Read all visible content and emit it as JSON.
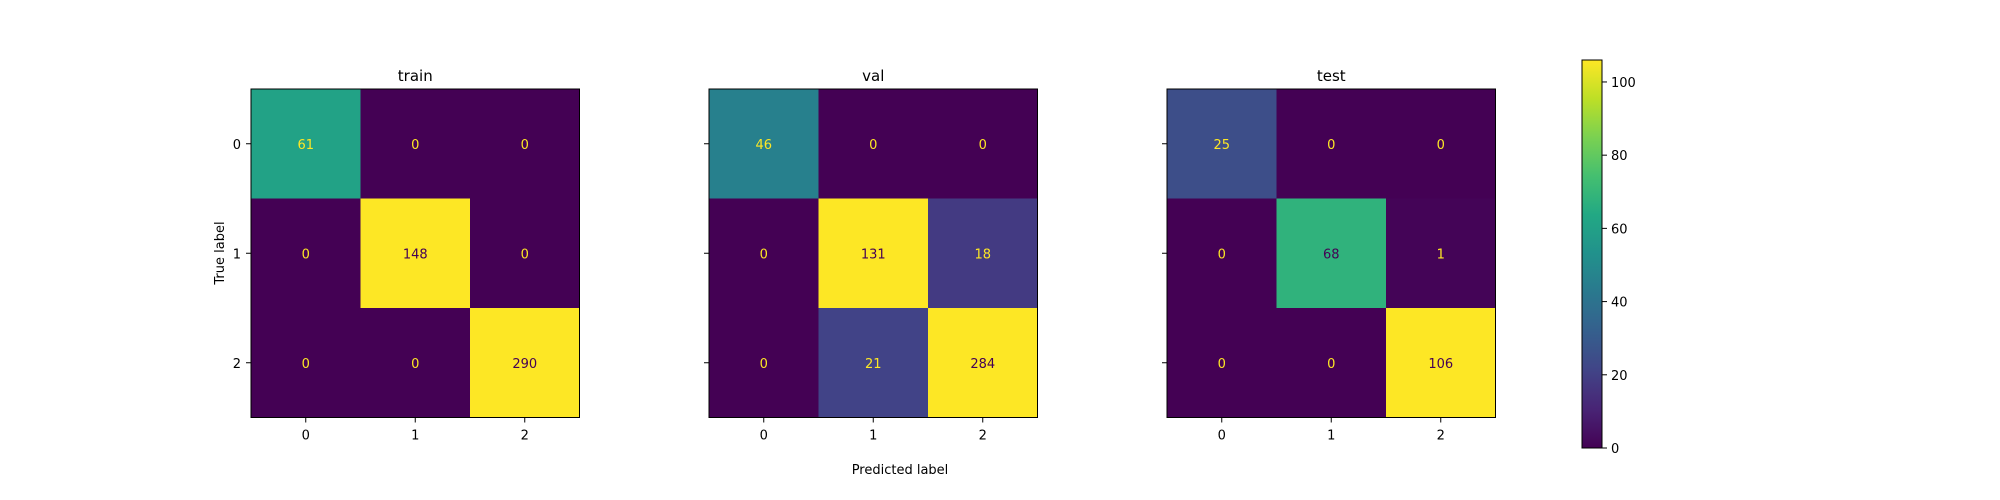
{
  "chart_data": {
    "type": "heatmap",
    "colormap": "viridis",
    "panels": [
      {
        "title": "train",
        "matrix": [
          [
            61,
            0,
            0
          ],
          [
            0,
            148,
            0
          ],
          [
            0,
            0,
            290
          ]
        ]
      },
      {
        "title": "val",
        "matrix": [
          [
            46,
            0,
            0
          ],
          [
            0,
            131,
            18
          ],
          [
            0,
            21,
            284
          ]
        ]
      },
      {
        "title": "test",
        "matrix": [
          [
            25,
            0,
            0
          ],
          [
            0,
            68,
            1
          ],
          [
            0,
            0,
            106
          ]
        ]
      }
    ],
    "x_tick_labels": [
      "0",
      "1",
      "2"
    ],
    "y_tick_labels": [
      "0",
      "1",
      "2"
    ],
    "xlabel": "Predicted label",
    "ylabel": "True label",
    "colorbar": {
      "range": [
        0,
        106
      ],
      "ticks": [
        0,
        20,
        40,
        60,
        80,
        100
      ]
    }
  }
}
